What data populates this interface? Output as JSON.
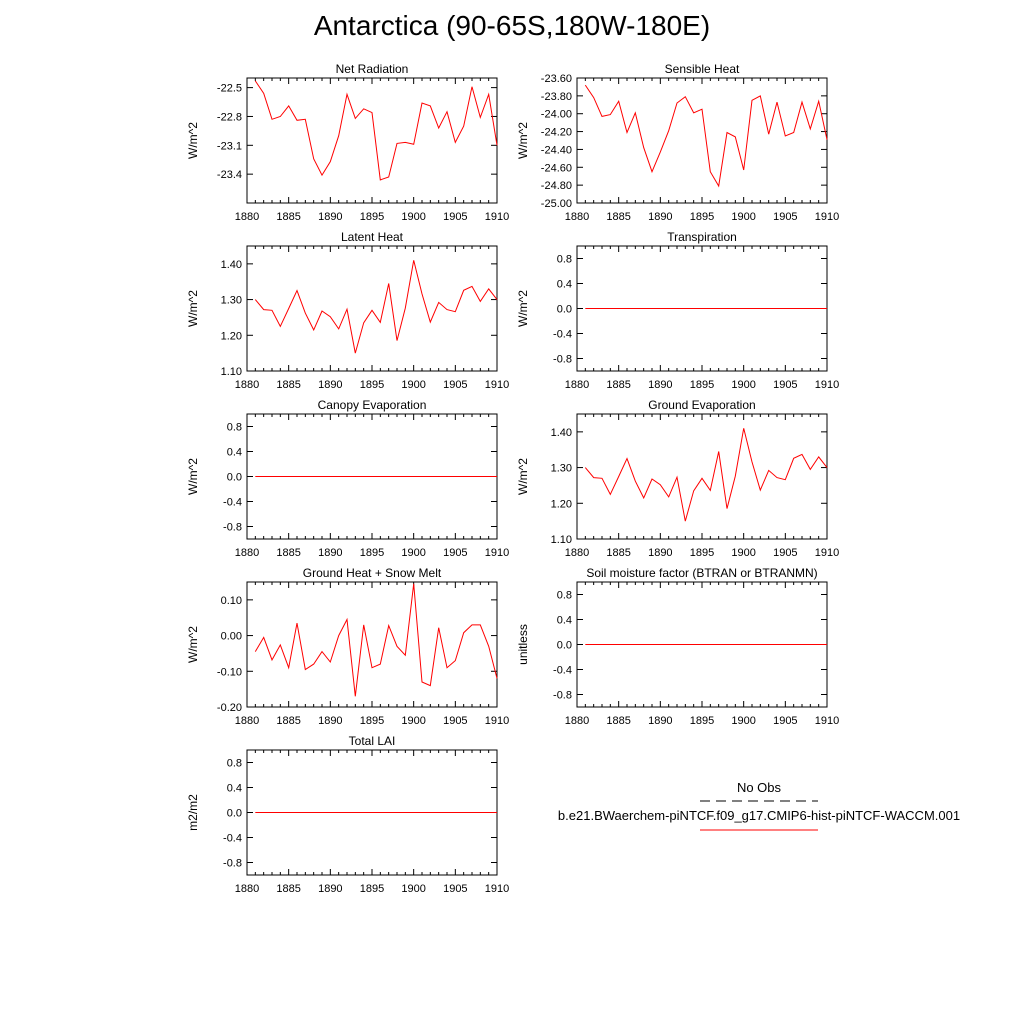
{
  "figure": {
    "title": "Antarctica (90-65S,180W-180E)",
    "line_color": "#ff0000"
  },
  "chart_data": [
    {
      "type": "line",
      "title": "Net Radiation",
      "ylabel": "W/m^2",
      "xlim": [
        1880,
        1910
      ],
      "ylim": [
        -23.7,
        -22.4
      ],
      "xticks": [
        "1880",
        "1885",
        "1890",
        "1895",
        "1900",
        "1905",
        "1910"
      ],
      "yticks": [
        "-22.5",
        "-22.8",
        "-23.1",
        "-23.4"
      ],
      "series": [
        {
          "x": [
            1881,
            1882,
            1883,
            1884,
            1885,
            1886,
            1887,
            1888,
            1889,
            1890,
            1891,
            1892,
            1893,
            1894,
            1895,
            1896,
            1897,
            1898,
            1899,
            1900,
            1901,
            1902,
            1903,
            1904,
            1905,
            1906,
            1907,
            1908,
            1909,
            1910
          ],
          "y": [
            -22.43,
            -22.56,
            -22.83,
            -22.8,
            -22.69,
            -22.84,
            -22.83,
            -23.24,
            -23.41,
            -23.27,
            -23.0,
            -22.57,
            -22.82,
            -22.72,
            -22.76,
            -23.46,
            -23.43,
            -23.08,
            -23.07,
            -23.09,
            -22.66,
            -22.69,
            -22.92,
            -22.75,
            -23.07,
            -22.9,
            -22.49,
            -22.81,
            -22.57,
            -23.1
          ]
        }
      ]
    },
    {
      "type": "line",
      "title": "Sensible Heat",
      "ylabel": "W/m^2",
      "xlim": [
        1880,
        1910
      ],
      "ylim": [
        -25.0,
        -23.6
      ],
      "xticks": [
        "1880",
        "1885",
        "1890",
        "1895",
        "1900",
        "1905",
        "1910"
      ],
      "yticks": [
        "-23.60",
        "-23.80",
        "-24.00",
        "-24.20",
        "-24.40",
        "-24.60",
        "-24.80",
        "-25.00"
      ],
      "series": [
        {
          "x": [
            1881,
            1882,
            1883,
            1884,
            1885,
            1886,
            1887,
            1888,
            1889,
            1890,
            1891,
            1892,
            1893,
            1894,
            1895,
            1896,
            1897,
            1898,
            1899,
            1900,
            1901,
            1902,
            1903,
            1904,
            1905,
            1906,
            1907,
            1908,
            1909,
            1910
          ],
          "y": [
            -23.68,
            -23.82,
            -24.03,
            -24.01,
            -23.86,
            -24.21,
            -23.99,
            -24.38,
            -24.65,
            -24.43,
            -24.19,
            -23.88,
            -23.81,
            -23.99,
            -23.95,
            -24.65,
            -24.81,
            -24.21,
            -24.26,
            -24.63,
            -23.85,
            -23.8,
            -24.23,
            -23.87,
            -24.25,
            -24.21,
            -23.87,
            -24.17,
            -23.86,
            -24.29
          ]
        }
      ]
    },
    {
      "type": "line",
      "title": "Latent Heat",
      "ylabel": "W/m^2",
      "xlim": [
        1880,
        1910
      ],
      "ylim": [
        1.1,
        1.45
      ],
      "xticks": [
        "1880",
        "1885",
        "1890",
        "1895",
        "1900",
        "1905",
        "1910"
      ],
      "yticks": [
        "1.40",
        "1.30",
        "1.20",
        "1.10"
      ],
      "series": [
        {
          "x": [
            1881,
            1882,
            1883,
            1884,
            1885,
            1886,
            1887,
            1888,
            1889,
            1890,
            1891,
            1892,
            1893,
            1894,
            1895,
            1896,
            1897,
            1898,
            1899,
            1900,
            1901,
            1902,
            1903,
            1904,
            1905,
            1906,
            1907,
            1908,
            1909,
            1910
          ],
          "y": [
            1.3,
            1.272,
            1.27,
            1.225,
            1.275,
            1.325,
            1.262,
            1.215,
            1.268,
            1.252,
            1.218,
            1.273,
            1.15,
            1.235,
            1.27,
            1.236,
            1.345,
            1.185,
            1.276,
            1.41,
            1.316,
            1.237,
            1.292,
            1.272,
            1.266,
            1.326,
            1.337,
            1.295,
            1.33,
            1.3
          ]
        }
      ]
    },
    {
      "type": "line",
      "title": "Transpiration",
      "ylabel": "W/m^2",
      "xlim": [
        1880,
        1910
      ],
      "ylim": [
        -1.0,
        1.0
      ],
      "xticks": [
        "1880",
        "1885",
        "1890",
        "1895",
        "1900",
        "1905",
        "1910"
      ],
      "yticks": [
        "0.8",
        "0.4",
        "0.0",
        "-0.4",
        "-0.8"
      ],
      "series": [
        {
          "x": [
            1881,
            1910
          ],
          "y": [
            0,
            0
          ]
        }
      ]
    },
    {
      "type": "line",
      "title": "Canopy Evaporation",
      "ylabel": "W/m^2",
      "xlim": [
        1880,
        1910
      ],
      "ylim": [
        -1.0,
        1.0
      ],
      "xticks": [
        "1880",
        "1885",
        "1890",
        "1895",
        "1900",
        "1905",
        "1910"
      ],
      "yticks": [
        "0.8",
        "0.4",
        "0.0",
        "-0.4",
        "-0.8"
      ],
      "series": [
        {
          "x": [
            1881,
            1910
          ],
          "y": [
            0,
            0
          ]
        }
      ]
    },
    {
      "type": "line",
      "title": "Ground Evaporation",
      "ylabel": "W/m^2",
      "xlim": [
        1880,
        1910
      ],
      "ylim": [
        1.1,
        1.45
      ],
      "xticks": [
        "1880",
        "1885",
        "1890",
        "1895",
        "1900",
        "1905",
        "1910"
      ],
      "yticks": [
        "1.40",
        "1.30",
        "1.20",
        "1.10"
      ],
      "series": [
        {
          "x": [
            1881,
            1882,
            1883,
            1884,
            1885,
            1886,
            1887,
            1888,
            1889,
            1890,
            1891,
            1892,
            1893,
            1894,
            1895,
            1896,
            1897,
            1898,
            1899,
            1900,
            1901,
            1902,
            1903,
            1904,
            1905,
            1906,
            1907,
            1908,
            1909,
            1910
          ],
          "y": [
            1.3,
            1.272,
            1.27,
            1.225,
            1.275,
            1.325,
            1.262,
            1.215,
            1.268,
            1.252,
            1.218,
            1.273,
            1.15,
            1.235,
            1.27,
            1.236,
            1.345,
            1.185,
            1.276,
            1.41,
            1.316,
            1.237,
            1.292,
            1.272,
            1.266,
            1.326,
            1.337,
            1.295,
            1.33,
            1.3
          ]
        }
      ]
    },
    {
      "type": "line",
      "title": "Ground Heat + Snow Melt",
      "ylabel": "W/m^2",
      "xlim": [
        1880,
        1910
      ],
      "ylim": [
        -0.2,
        0.15
      ],
      "xticks": [
        "1880",
        "1885",
        "1890",
        "1895",
        "1900",
        "1905",
        "1910"
      ],
      "yticks": [
        "0.10",
        "0.00",
        "-0.10",
        "-0.20"
      ],
      "series": [
        {
          "x": [
            1881,
            1882,
            1883,
            1884,
            1885,
            1886,
            1887,
            1888,
            1889,
            1890,
            1891,
            1892,
            1893,
            1894,
            1895,
            1896,
            1897,
            1898,
            1899,
            1900,
            1901,
            1902,
            1903,
            1904,
            1905,
            1906,
            1907,
            1908,
            1909,
            1910
          ],
          "y": [
            -0.045,
            -0.005,
            -0.068,
            -0.026,
            -0.09,
            0.035,
            -0.095,
            -0.08,
            -0.045,
            -0.074,
            0.0,
            0.045,
            -0.17,
            0.03,
            -0.09,
            -0.08,
            0.028,
            -0.03,
            -0.055,
            0.145,
            -0.13,
            -0.14,
            0.022,
            -0.09,
            -0.07,
            0.008,
            0.03,
            0.03,
            -0.03,
            -0.12
          ]
        }
      ]
    },
    {
      "type": "line",
      "title": "Soil moisture factor (BTRAN or BTRANMN)",
      "ylabel": "unitless",
      "xlim": [
        1880,
        1910
      ],
      "ylim": [
        -1.0,
        1.0
      ],
      "xticks": [
        "1880",
        "1885",
        "1890",
        "1895",
        "1900",
        "1905",
        "1910"
      ],
      "yticks": [
        "0.8",
        "0.4",
        "0.0",
        "-0.4",
        "-0.8"
      ],
      "series": [
        {
          "x": [
            1881,
            1910
          ],
          "y": [
            0,
            0
          ]
        }
      ]
    },
    {
      "type": "line",
      "title": "Total LAI",
      "ylabel": "m2/m2",
      "xlim": [
        1880,
        1910
      ],
      "ylim": [
        -1.0,
        1.0
      ],
      "xticks": [
        "1880",
        "1885",
        "1890",
        "1895",
        "1900",
        "1905",
        "1910"
      ],
      "yticks": [
        "0.8",
        "0.4",
        "0.0",
        "-0.4",
        "-0.8"
      ],
      "series": [
        {
          "x": [
            1881,
            1910
          ],
          "y": [
            0,
            0
          ]
        }
      ]
    }
  ],
  "legend": {
    "obs_label": "No Obs",
    "model_label": "b.e21.BWaerchem-piNTCF.f09_g17.CMIP6-hist-piNTCF-WACCM.001",
    "obs_color": "#000000",
    "model_color": "#ff0000"
  }
}
